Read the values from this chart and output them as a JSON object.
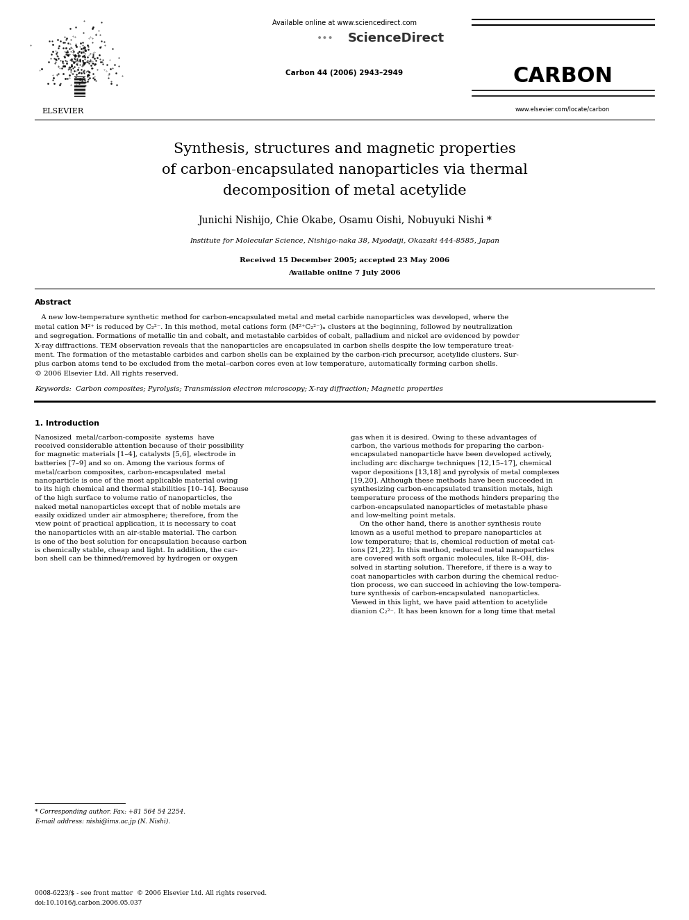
{
  "bg_color": "#ffffff",
  "page_width": 9.92,
  "page_height": 13.23,
  "header": {
    "available_online_text": "Available online at www.sciencedirect.com",
    "sciencedirect_text": "ScienceDirect",
    "journal_name": "CARBON",
    "journal_volume": "Carbon 44 (2006) 2943–2949",
    "journal_url": "www.elsevier.com/locate/carbon",
    "elsevier_text": "ELSEVIER"
  },
  "title": {
    "line1": "Synthesis, structures and magnetic properties",
    "line2": "of carbon-encapsulated nanoparticles via thermal",
    "line3": "decomposition of metal acetylide"
  },
  "authors": "Junichi Nishijo, Chie Okabe, Osamu Oishi, Nobuyuki Nishi *",
  "affiliation": "Institute for Molecular Science, Nishigo-naka 38, Myodaiji, Okazaki 444-8585, Japan",
  "received": "Received 15 December 2005; accepted 23 May 2006",
  "available": "Available online 7 July 2006",
  "abstract_title": "Abstract",
  "keywords_line": "Keywords:  Carbon composites; Pyrolysis; Transmission electron microscopy; X-ray diffraction; Magnetic properties",
  "section1_title": "1. Introduction",
  "footnote_star": "* Corresponding author. Fax: +81 564 54 2254.",
  "footnote_email": "E-mail address: nishi@ims.ac.jp (N. Nishi).",
  "footer_issn": "0008-6223/$ - see front matter  © 2006 Elsevier Ltd. All rights reserved.",
  "footer_doi": "doi:10.1016/j.carbon.2006.05.037",
  "abstract_lines": [
    "   A new low-temperature synthetic method for carbon-encapsulated metal and metal carbide nanoparticles was developed, where the",
    "metal cation M²⁺ is reduced by C₂²⁻. In this method, metal cations form (M²⁺C₂²⁻)ₙ clusters at the beginning, followed by neutralization",
    "and segregation. Formations of metallic tin and cobalt, and metastable carbides of cobalt, palladium and nickel are evidenced by powder",
    "X-ray diffractions. TEM observation reveals that the nanoparticles are encapsulated in carbon shells despite the low temperature treat-",
    "ment. The formation of the metastable carbides and carbon shells can be explained by the carbon-rich precursor, acetylide clusters. Sur-",
    "plus carbon atoms tend to be excluded from the metal–carbon cores even at low temperature, automatically forming carbon shells.",
    "© 2006 Elsevier Ltd. All rights reserved."
  ],
  "col1_lines": [
    "Nanosized  metal/carbon-composite  systems  have",
    "received considerable attention because of their possibility",
    "for magnetic materials [1–4], catalysts [5,6], electrode in",
    "batteries [7–9] and so on. Among the various forms of",
    "metal/carbon composites, carbon-encapsulated  metal",
    "nanoparticle is one of the most applicable material owing",
    "to its high chemical and thermal stabilities [10–14]. Because",
    "of the high surface to volume ratio of nanoparticles, the",
    "naked metal nanoparticles except that of noble metals are",
    "easily oxidized under air atmosphere; therefore, from the",
    "view point of practical application, it is necessary to coat",
    "the nanoparticles with an air-stable material. The carbon",
    "is one of the best solution for encapsulation because carbon",
    "is chemically stable, cheap and light. In addition, the car-",
    "bon shell can be thinned/removed by hydrogen or oxygen"
  ],
  "col2_lines": [
    "gas when it is desired. Owing to these advantages of",
    "carbon, the various methods for preparing the carbon-",
    "encapsulated nanoparticle have been developed actively,",
    "including arc discharge techniques [12,15–17], chemical",
    "vapor depositions [13,18] and pyrolysis of metal complexes",
    "[19,20]. Although these methods have been succeeded in",
    "synthesizing carbon-encapsulated transition metals, high",
    "temperature process of the methods hinders preparing the",
    "carbon-encapsulated nanoparticles of metastable phase",
    "and low-melting point metals.",
    "    On the other hand, there is another synthesis route",
    "known as a useful method to prepare nanoparticles at",
    "low temperature; that is, chemical reduction of metal cat-",
    "ions [21,22]. In this method, reduced metal nanoparticles",
    "are covered with soft organic molecules, like R–OH, dis-",
    "solved in starting solution. Therefore, if there is a way to",
    "coat nanoparticles with carbon during the chemical reduc-",
    "tion process, we can succeed in achieving the low-tempera-",
    "ture synthesis of carbon-encapsulated  nanoparticles.",
    "Viewed in this light, we have paid attention to acetylide",
    "dianion C₂²⁻. It has been known for a long time that metal"
  ]
}
